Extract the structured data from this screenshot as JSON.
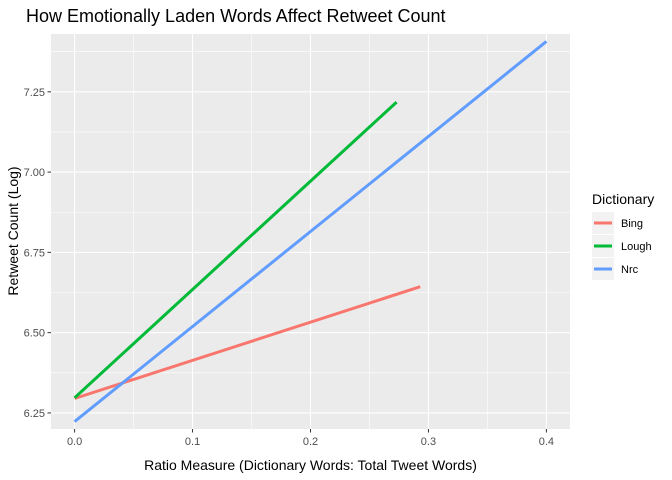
{
  "chart_data": {
    "type": "line",
    "title": "How Emotionally Laden Words Affect Retweet Count",
    "xlabel": "Ratio Measure (Dictionary Words: Total Tweet Words)",
    "ylabel": "Retweet Count (Log)",
    "xlim": [
      -0.02,
      0.42
    ],
    "ylim": [
      6.2,
      7.43
    ],
    "x_ticks": [
      0.0,
      0.1,
      0.2,
      0.3,
      0.4
    ],
    "x_tick_labels": [
      "0.0",
      "0.1",
      "0.2",
      "0.3",
      "0.4"
    ],
    "y_ticks": [
      6.25,
      6.5,
      6.75,
      7.0,
      7.25
    ],
    "y_tick_labels": [
      "6.25",
      "6.50",
      "6.75",
      "7.00",
      "7.25"
    ],
    "grid": true,
    "legend": {
      "title": "Dictionary",
      "position": "right"
    },
    "series": [
      {
        "name": "Bing",
        "color": "#F8766D",
        "x": [
          0.0,
          0.293
        ],
        "y": [
          6.295,
          6.643
        ]
      },
      {
        "name": "Lough",
        "color": "#00BA38",
        "x": [
          0.0,
          0.273
        ],
        "y": [
          6.297,
          7.218
        ]
      },
      {
        "name": "Nrc",
        "color": "#619CFF",
        "x": [
          0.0,
          0.4
        ],
        "y": [
          6.223,
          7.407
        ]
      }
    ]
  }
}
